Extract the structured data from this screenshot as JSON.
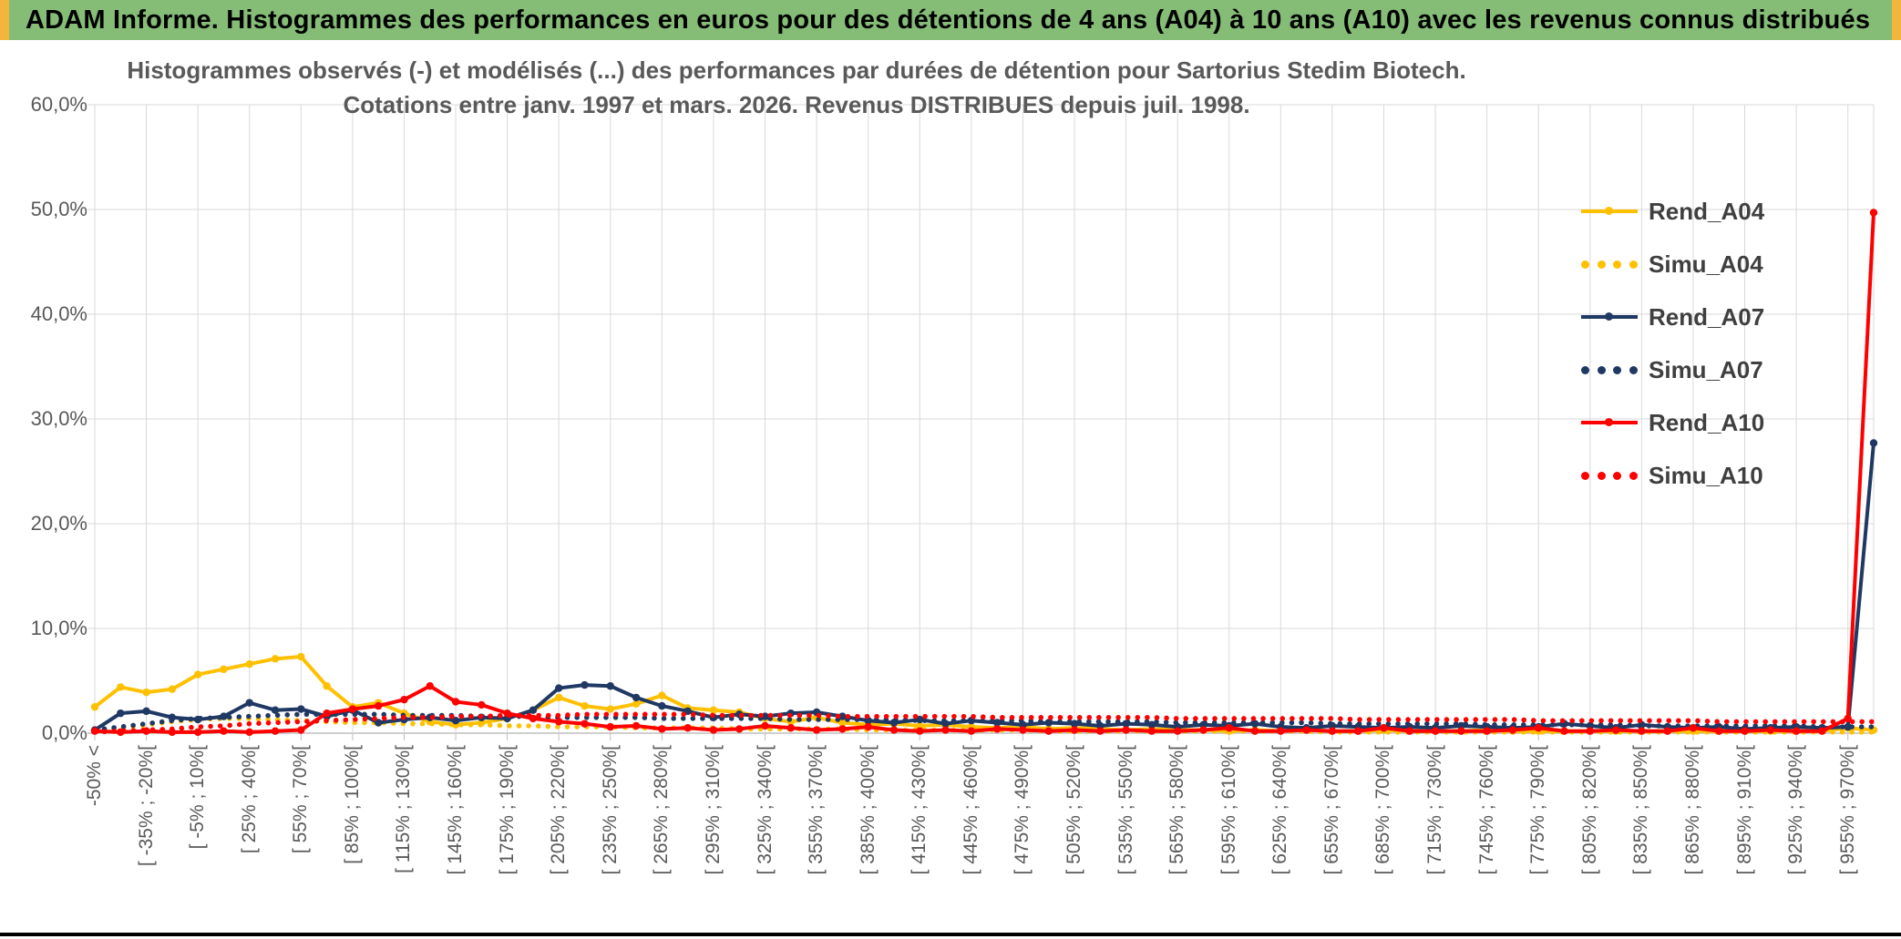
{
  "banner": {
    "title": "ADAM Informe. Histogrammes des performances en euros pour des détentions de 4 ans (A04) à 10 ans (A10) avec les revenus connus distribués"
  },
  "chart": {
    "title_line1": "Histogrammes observés (-) et modélisés (...) des performances par durées de détention pour Sartorius Stedim Biotech.",
    "title_line2": "Cotations entre janv. 1997 et mars. 2026. Revenus DISTRIBUES depuis juil. 1998."
  },
  "chart_data": {
    "type": "line",
    "grid": true,
    "legend_position": "right",
    "ylim": [
      0,
      60
    ],
    "points_per_label": 2,
    "y_ticks": [
      {
        "value": 0,
        "label": "0,0%"
      },
      {
        "value": 10,
        "label": "10,0%"
      },
      {
        "value": 20,
        "label": "20,0%"
      },
      {
        "value": 30,
        "label": "30,0%"
      },
      {
        "value": 40,
        "label": "40,0%"
      },
      {
        "value": 50,
        "label": "50,0%"
      },
      {
        "value": 60,
        "label": "60,0%"
      }
    ],
    "x_tick_labels": [
      "-50% <",
      "[ -35% ; -20%[",
      "[ -5% ; 10%[",
      "[ 25% ; 40%[",
      "[ 55% ; 70%[",
      "[ 85% ; 100%[",
      "[ 115% ; 130%[",
      "[ 145% ; 160%[",
      "[ 175% ; 190%[",
      "[ 205% ; 220%[",
      "[ 235% ; 250%[",
      "[ 265% ; 280%[",
      "[ 295% ; 310%[",
      "[ 325% ; 340%[",
      "[ 355% ; 370%[",
      "[ 385% ; 400%[",
      "[ 415% ; 430%[",
      "[ 445% ; 460%[",
      "[ 475% ; 490%[",
      "[ 505% ; 520%[",
      "[ 535% ; 550%[",
      "[ 565% ; 580%[",
      "[ 595% ; 610%[",
      "[ 625% ; 640%[",
      "[ 655% ; 670%[",
      "[ 685% ; 700%[",
      "[ 715% ; 730%[",
      "[ 745% ; 760%[",
      "[ 775% ; 790%[",
      "[ 805% ; 820%[",
      "[ 835% ; 850%[",
      "[ 865% ; 880%[",
      "[ 895% ; 910%[",
      "[ 925% ; 940%[",
      "[ 955% ; 970%["
    ],
    "series": [
      {
        "name": "Rend_A04",
        "color": "#FFC000",
        "style": "solid",
        "values": [
          2.5,
          4.4,
          3.9,
          4.2,
          5.6,
          6.1,
          6.6,
          7.1,
          7.3,
          4.5,
          2.5,
          2.9,
          1.9,
          1.1,
          0.8,
          1.0,
          1.4,
          2.2,
          3.4,
          2.6,
          2.3,
          2.8,
          3.6,
          2.4,
          2.2,
          2.0,
          1.4,
          1.1,
          1.5,
          1.0,
          0.8,
          0.9,
          0.7,
          0.8,
          0.6,
          0.5,
          0.6,
          0.4,
          0.5,
          0.4,
          0.3,
          0.4,
          0.3,
          0.3,
          0.2,
          0.3,
          0.2,
          0.3,
          0.2,
          0.2,
          0.3,
          0.2,
          0.2,
          0.2,
          0.3,
          0.2,
          0.2,
          0.2,
          0.2,
          0.2,
          0.2,
          0.2,
          0.2,
          0.2,
          0.2,
          0.2,
          0.2,
          0.2,
          0.5,
          0.3
        ]
      },
      {
        "name": "Simu_A04",
        "color": "#FFC000",
        "style": "dotted",
        "values": [
          0.2,
          0.5,
          0.8,
          1.1,
          1.3,
          1.4,
          1.4,
          1.3,
          1.2,
          1.1,
          1.0,
          1.0,
          0.9,
          0.9,
          0.8,
          0.8,
          0.7,
          0.7,
          0.6,
          0.6,
          0.6,
          0.5,
          0.5,
          0.5,
          0.5,
          0.4,
          0.4,
          0.4,
          0.4,
          0.4,
          0.3,
          0.3,
          0.3,
          0.3,
          0.3,
          0.3,
          0.3,
          0.2,
          0.2,
          0.2,
          0.2,
          0.2,
          0.2,
          0.2,
          0.2,
          0.2,
          0.2,
          0.2,
          0.1,
          0.1,
          0.1,
          0.1,
          0.1,
          0.1,
          0.1,
          0.1,
          0.1,
          0.1,
          0.1,
          0.1,
          0.1,
          0.1,
          0.1,
          0.1,
          0.1,
          0.1,
          0.1,
          0.1,
          0.1,
          0.1
        ]
      },
      {
        "name": "Rend_A07",
        "color": "#1F3864",
        "style": "solid",
        "values": [
          0.3,
          1.9,
          2.1,
          1.5,
          1.3,
          1.6,
          2.9,
          2.2,
          2.3,
          1.6,
          2.2,
          1.0,
          1.3,
          1.5,
          1.2,
          1.5,
          1.4,
          2.2,
          4.3,
          4.6,
          4.5,
          3.4,
          2.6,
          2.1,
          1.5,
          1.8,
          1.6,
          1.9,
          2.0,
          1.6,
          1.2,
          1.0,
          1.3,
          0.9,
          1.2,
          1.0,
          0.8,
          1.0,
          0.9,
          0.7,
          0.9,
          0.8,
          0.6,
          0.8,
          0.7,
          0.9,
          0.6,
          0.5,
          0.7,
          0.6,
          0.5,
          0.6,
          0.5,
          0.7,
          0.6,
          0.5,
          0.6,
          0.9,
          0.7,
          0.5,
          0.8,
          0.6,
          0.5,
          0.6,
          0.4,
          0.5,
          0.6,
          0.5,
          0.6,
          27.7
        ]
      },
      {
        "name": "Simu_A07",
        "color": "#1F3864",
        "style": "dotted",
        "values": [
          0.3,
          0.6,
          0.9,
          1.2,
          1.4,
          1.5,
          1.6,
          1.7,
          1.8,
          1.8,
          1.8,
          1.8,
          1.7,
          1.7,
          1.7,
          1.6,
          1.6,
          1.6,
          1.5,
          1.5,
          1.5,
          1.5,
          1.4,
          1.4,
          1.4,
          1.4,
          1.4,
          1.3,
          1.3,
          1.3,
          1.3,
          1.3,
          1.2,
          1.2,
          1.2,
          1.2,
          1.2,
          1.1,
          1.1,
          1.1,
          1.1,
          1.1,
          1.0,
          1.0,
          1.0,
          1.0,
          1.0,
          1.0,
          0.9,
          0.9,
          0.9,
          0.9,
          0.9,
          0.9,
          0.8,
          0.8,
          0.8,
          0.8,
          0.8,
          0.8,
          0.7,
          0.7,
          0.7,
          0.7,
          0.7,
          0.7,
          0.7,
          0.6,
          0.6,
          0.6
        ]
      },
      {
        "name": "Rend_A10",
        "color": "#FF0000",
        "style": "solid",
        "values": [
          0.2,
          0.1,
          0.2,
          0.1,
          0.1,
          0.2,
          0.1,
          0.2,
          0.3,
          1.9,
          2.3,
          2.6,
          3.2,
          4.5,
          3.0,
          2.7,
          1.9,
          1.4,
          1.1,
          0.9,
          0.6,
          0.7,
          0.4,
          0.5,
          0.3,
          0.4,
          0.7,
          0.5,
          0.3,
          0.4,
          0.6,
          0.3,
          0.2,
          0.3,
          0.2,
          0.4,
          0.3,
          0.2,
          0.3,
          0.2,
          0.3,
          0.2,
          0.2,
          0.3,
          0.5,
          0.2,
          0.2,
          0.3,
          0.2,
          0.2,
          0.5,
          0.2,
          0.2,
          0.2,
          0.2,
          0.3,
          0.5,
          0.2,
          0.2,
          0.3,
          0.2,
          0.2,
          0.5,
          0.2,
          0.2,
          0.3,
          0.2,
          0.2,
          1.4,
          49.7
        ]
      },
      {
        "name": "Simu_A10",
        "color": "#FF0000",
        "style": "dotted",
        "values": [
          0.1,
          0.2,
          0.3,
          0.4,
          0.6,
          0.7,
          0.9,
          1.0,
          1.1,
          1.2,
          1.3,
          1.4,
          1.5,
          1.5,
          1.6,
          1.6,
          1.7,
          1.7,
          1.7,
          1.8,
          1.8,
          1.8,
          1.8,
          1.8,
          1.7,
          1.7,
          1.7,
          1.7,
          1.7,
          1.6,
          1.6,
          1.6,
          1.6,
          1.6,
          1.6,
          1.5,
          1.5,
          1.5,
          1.5,
          1.5,
          1.5,
          1.5,
          1.4,
          1.4,
          1.4,
          1.4,
          1.4,
          1.4,
          1.4,
          1.3,
          1.3,
          1.3,
          1.3,
          1.3,
          1.3,
          1.3,
          1.2,
          1.2,
          1.2,
          1.2,
          1.2,
          1.2,
          1.2,
          1.1,
          1.1,
          1.1,
          1.1,
          1.1,
          1.1,
          1.1
        ]
      }
    ]
  }
}
